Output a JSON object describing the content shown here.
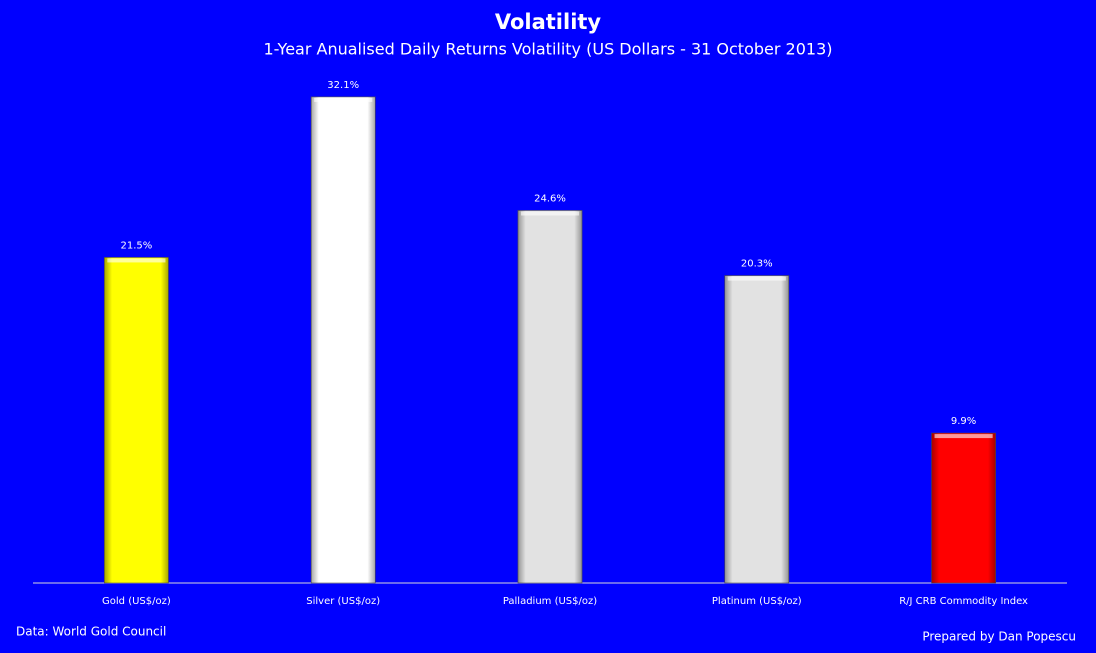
{
  "chart_data": {
    "type": "bar",
    "title": "Volatility",
    "subtitle": "1-Year Anualised Daily Returns Volatility (US Dollars - 31 October 2013)",
    "categories": [
      "Gold (US$/oz)",
      "Silver (US$/oz)",
      "Palladium (US$/oz)",
      "Platinum (US$/oz)",
      "R/J CRB Commodity Index"
    ],
    "values": [
      21.5,
      32.1,
      24.6,
      20.3,
      9.9
    ],
    "value_labels": [
      "21.5%",
      "32.1%",
      "24.6%",
      "20.3%",
      "9.9%"
    ],
    "colors": [
      "#ffff00",
      "#ffffff",
      "#e2e2e2",
      "#e2e2e2",
      "#ff0000"
    ],
    "ylim": [
      0,
      35
    ],
    "source": "Data: World Gold Council",
    "credit": "Prepared by Dan Popescu"
  }
}
